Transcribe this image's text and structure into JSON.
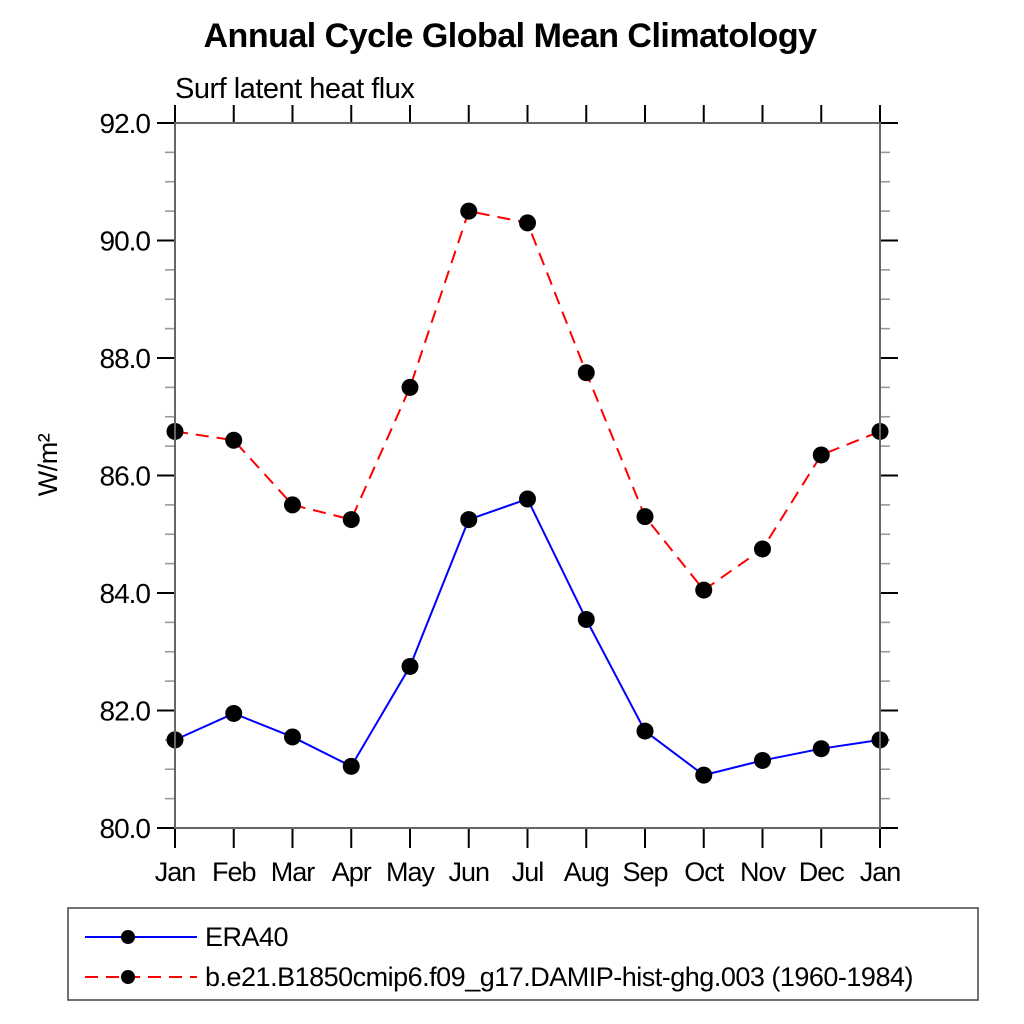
{
  "title": "Annual Cycle Global Mean Climatology",
  "subtitle": "Surf latent heat flux",
  "chart_data": {
    "type": "line",
    "title": "Annual Cycle Global Mean Climatology",
    "subtitle": "Surf latent heat flux",
    "xlabel": "",
    "ylabel": "W/m²",
    "x_labels": [
      "Jan",
      "Feb",
      "Mar",
      "Apr",
      "May",
      "Jun",
      "Jul",
      "Aug",
      "Sep",
      "Oct",
      "Nov",
      "Dec",
      "Jan"
    ],
    "ylim": [
      80.0,
      92.0
    ],
    "y_major_step": 2.0,
    "y_minor_step": 0.5,
    "y_tick_decimals": 1,
    "grid": false,
    "legend_position": "bottom",
    "axis_color": "#666666",
    "major_tick_color": "#000000",
    "minor_tick_color": "#999999",
    "marker_color": "#000000",
    "series": [
      {
        "name": "ERA40",
        "color": "#0000ff",
        "line_style": "solid",
        "marker": "circle",
        "values": [
          81.5,
          81.95,
          81.55,
          81.05,
          82.75,
          85.25,
          85.6,
          83.55,
          81.65,
          80.9,
          81.15,
          81.35,
          81.5
        ]
      },
      {
        "name": "b.e21.B1850cmip6.f09_g17.DAMIP-hist-ghg.003 (1960-1984)",
        "color": "#ff0000",
        "line_style": "dashed",
        "marker": "circle",
        "values": [
          86.75,
          86.6,
          85.5,
          85.25,
          87.5,
          90.5,
          90.3,
          87.75,
          85.3,
          84.05,
          84.75,
          86.35,
          86.75
        ]
      }
    ]
  }
}
